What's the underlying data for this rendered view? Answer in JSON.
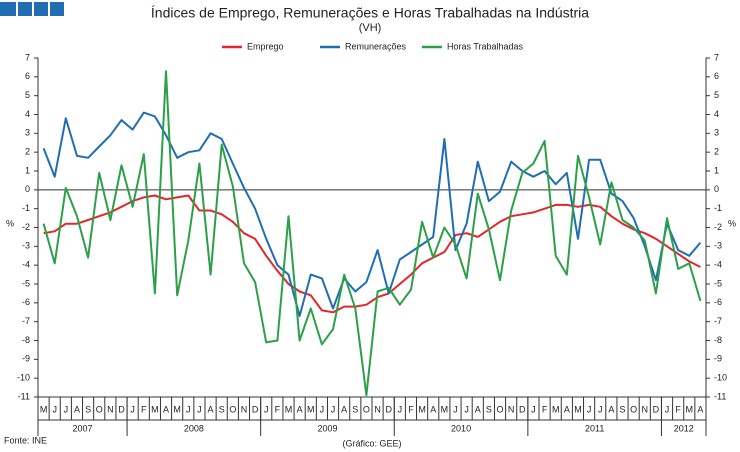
{
  "chart_data": {
    "type": "line",
    "title": "Índices de Emprego, Remunerações e Horas Trabalhadas na Indústria",
    "subtitle": "(VH)",
    "ylabel": "%",
    "source": "Fonte: INE",
    "credit": "(Gráfico: GEE)",
    "categories": [
      "M",
      "J",
      "J",
      "A",
      "S",
      "O",
      "N",
      "D",
      "J",
      "F",
      "M",
      "A",
      "M",
      "J",
      "J",
      "A",
      "S",
      "O",
      "N",
      "D",
      "J",
      "F",
      "M",
      "A",
      "M",
      "J",
      "J",
      "A",
      "S",
      "O",
      "N",
      "D",
      "J",
      "F",
      "M",
      "A",
      "M",
      "J",
      "J",
      "A",
      "S",
      "O",
      "N",
      "D",
      "J",
      "F",
      "M",
      "A",
      "M",
      "J",
      "J",
      "A",
      "S",
      "O",
      "N",
      "D",
      "J",
      "F",
      "M",
      "A"
    ],
    "years": [
      {
        "label": "2007",
        "months": 8
      },
      {
        "label": "2008",
        "months": 12
      },
      {
        "label": "2009",
        "months": 12
      },
      {
        "label": "2010",
        "months": 12
      },
      {
        "label": "2011",
        "months": 12
      },
      {
        "label": "2012",
        "months": 4
      }
    ],
    "ylim": [
      -11,
      7
    ],
    "yticks": [
      7,
      6,
      5,
      4,
      3,
      2,
      1,
      0,
      -1,
      -2,
      -3,
      -4,
      -5,
      -6,
      -7,
      -8,
      -9,
      -10,
      -11
    ],
    "y2lim": [
      -11,
      7
    ],
    "y2ticks": [
      7,
      6,
      5,
      4,
      3,
      2,
      1,
      0,
      -1,
      -2,
      -3,
      -4,
      -5,
      -6,
      -7,
      -8,
      -9,
      -10,
      -11
    ],
    "legend": "top",
    "series": [
      {
        "name": "Emprego",
        "color": "#e3262b",
        "values": [
          -2.3,
          -2.2,
          -1.8,
          -1.8,
          -1.6,
          -1.4,
          -1.2,
          -0.9,
          -0.6,
          -0.4,
          -0.3,
          -0.5,
          -0.4,
          -0.3,
          -1.1,
          -1.1,
          -1.3,
          -1.7,
          -2.3,
          -2.6,
          -3.5,
          -4.3,
          -5.0,
          -5.4,
          -5.6,
          -6.4,
          -6.5,
          -6.2,
          -6.2,
          -6.1,
          -5.7,
          -5.5,
          -5.0,
          -4.5,
          -3.9,
          -3.6,
          -3.3,
          -2.4,
          -2.3,
          -2.5,
          -2.1,
          -1.7,
          -1.4,
          -1.3,
          -1.2,
          -1.0,
          -0.8,
          -0.8,
          -0.9,
          -0.8,
          -0.9,
          -1.4,
          -1.8,
          -2.1,
          -2.3,
          -2.6,
          -3.0,
          -3.4,
          -3.8,
          -4.1
        ]
      },
      {
        "name": "Remunerações",
        "color": "#1f6eb4",
        "values": [
          2.2,
          0.7,
          3.8,
          1.8,
          1.7,
          2.3,
          2.9,
          3.7,
          3.2,
          4.1,
          3.9,
          2.9,
          1.7,
          2.0,
          2.1,
          3.0,
          2.7,
          1.4,
          0.1,
          -1.0,
          -2.6,
          -4.0,
          -4.5,
          -6.7,
          -4.5,
          -4.7,
          -6.3,
          -4.7,
          -5.4,
          -4.9,
          -3.2,
          -5.5,
          -3.7,
          -3.3,
          -2.9,
          -2.5,
          2.7,
          -3.2,
          -1.8,
          1.5,
          -0.6,
          -0.1,
          1.5,
          1.0,
          0.7,
          1.0,
          0.3,
          0.9,
          -2.6,
          1.6,
          1.6,
          -0.2,
          -0.6,
          -1.5,
          -3.0,
          -4.8,
          -1.8,
          -3.2,
          -3.5,
          -2.8
        ]
      },
      {
        "name": "Horas Trabalhadas",
        "color": "#2ca048",
        "values": [
          -1.8,
          -3.9,
          0.1,
          -1.4,
          -3.6,
          0.9,
          -1.6,
          1.3,
          -0.9,
          1.9,
          -5.5,
          6.3,
          -5.6,
          -2.7,
          1.4,
          -4.5,
          2.4,
          0.2,
          -3.9,
          -4.9,
          -8.1,
          -8.0,
          -1.4,
          -8.0,
          -6.3,
          -8.2,
          -7.4,
          -4.5,
          -6.3,
          -10.9,
          -5.4,
          -5.2,
          -6.1,
          -5.3,
          -1.7,
          -3.6,
          -2.0,
          -2.9,
          -4.7,
          -0.2,
          -2.1,
          -4.8,
          -1.1,
          0.9,
          1.4,
          2.6,
          -3.5,
          -4.5,
          1.8,
          -0.4,
          -2.9,
          0.4,
          -1.6,
          -2.0,
          -2.7,
          -5.5,
          -1.5,
          -4.2,
          -3.9,
          -5.9
        ]
      }
    ]
  }
}
